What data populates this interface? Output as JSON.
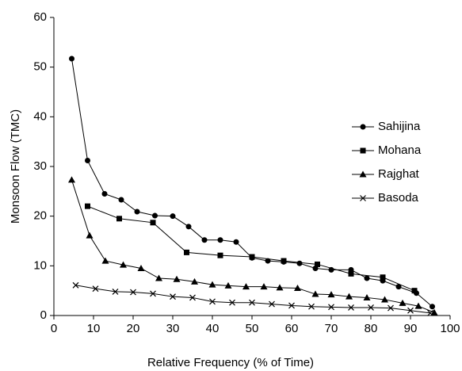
{
  "chart_data": {
    "type": "line",
    "xlabel": "Relative Frequency (% of Time)",
    "ylabel": "Monsoon Flow (TMC)",
    "xlim": [
      0,
      100
    ],
    "xticks": [
      0,
      10,
      20,
      30,
      40,
      50,
      60,
      70,
      80,
      90,
      100
    ],
    "ylim": [
      0,
      60
    ],
    "yticks": [
      0,
      10,
      20,
      30,
      40,
      50,
      60
    ],
    "grid": false,
    "legend": "right",
    "series": [
      {
        "name": "Sahijina",
        "color": "#000000",
        "marker": "circle",
        "x": [
          4.5,
          8.5,
          12.8,
          17,
          21,
          25.5,
          30,
          34,
          38,
          42,
          46,
          50,
          54,
          58,
          62,
          66,
          70,
          75,
          79,
          83,
          87,
          91.5,
          95.5
        ],
        "values": [
          51.7,
          31.2,
          24.5,
          23.3,
          20.9,
          20.1,
          20,
          17.9,
          15.2,
          15.2,
          14.8,
          11.6,
          11,
          10.8,
          10.5,
          9.5,
          9.2,
          9.2,
          7.5,
          7,
          5.8,
          4.5,
          1.8
        ]
      },
      {
        "name": "Mohana",
        "color": "#000000",
        "marker": "square",
        "x": [
          8.5,
          16.5,
          25,
          33.5,
          42,
          50,
          58,
          66.5,
          75,
          83,
          91
        ],
        "values": [
          22,
          19.5,
          18.7,
          12.7,
          12.1,
          11.8,
          11,
          10.3,
          8.4,
          7.7,
          5
        ]
      },
      {
        "name": "Rajghat",
        "color": "#000000",
        "marker": "triangle",
        "x": [
          4.5,
          9,
          13,
          17.5,
          22,
          26.5,
          31,
          35.5,
          40,
          44,
          48.5,
          53,
          57,
          61.5,
          66,
          70,
          74.5,
          79,
          83.5,
          88,
          92,
          96
        ],
        "values": [
          27.3,
          16.1,
          11,
          10.2,
          9.5,
          7.5,
          7.3,
          6.8,
          6.2,
          6,
          5.8,
          5.8,
          5.6,
          5.5,
          4.3,
          4.2,
          3.8,
          3.6,
          3.2,
          2.5,
          1.9,
          0.6
        ]
      },
      {
        "name": "Basoda",
        "color": "#000000",
        "marker": "x",
        "x": [
          5.5,
          10.5,
          15.5,
          20,
          25,
          30,
          35,
          40,
          45,
          50,
          55,
          60,
          65,
          70,
          75,
          80,
          85,
          90,
          95
        ],
        "values": [
          6.1,
          5.4,
          4.8,
          4.7,
          4.4,
          3.8,
          3.6,
          2.8,
          2.6,
          2.6,
          2.3,
          2,
          1.8,
          1.7,
          1.6,
          1.6,
          1.5,
          1,
          0.5
        ]
      }
    ]
  }
}
